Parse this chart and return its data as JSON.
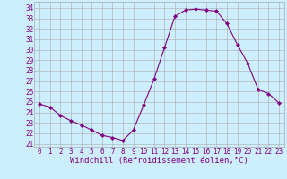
{
  "x": [
    0,
    1,
    2,
    3,
    4,
    5,
    6,
    7,
    8,
    9,
    10,
    11,
    12,
    13,
    14,
    15,
    16,
    17,
    18,
    19,
    20,
    21,
    22,
    23
  ],
  "y": [
    24.8,
    24.5,
    23.7,
    23.2,
    22.8,
    22.3,
    21.8,
    21.6,
    21.3,
    22.3,
    24.7,
    27.2,
    30.2,
    33.2,
    33.8,
    33.9,
    33.8,
    33.7,
    32.5,
    30.5,
    28.7,
    26.2,
    25.8,
    24.9
  ],
  "line_color": "#800080",
  "marker": "D",
  "marker_size": 2.0,
  "bg_color": "#cceeff",
  "grid_color": "#aaaaaa",
  "xlabel": "Windchill (Refroidissement éolien,°C)",
  "xlabel_color": "#800080",
  "ylabel_ticks": [
    21,
    22,
    23,
    24,
    25,
    26,
    27,
    28,
    29,
    30,
    31,
    32,
    33,
    34
  ],
  "ylim": [
    20.7,
    34.6
  ],
  "xlim": [
    -0.5,
    23.5
  ],
  "tick_color": "#800080",
  "tick_fontsize": 5.5,
  "xlabel_fontsize": 6.5,
  "linewidth": 0.8
}
